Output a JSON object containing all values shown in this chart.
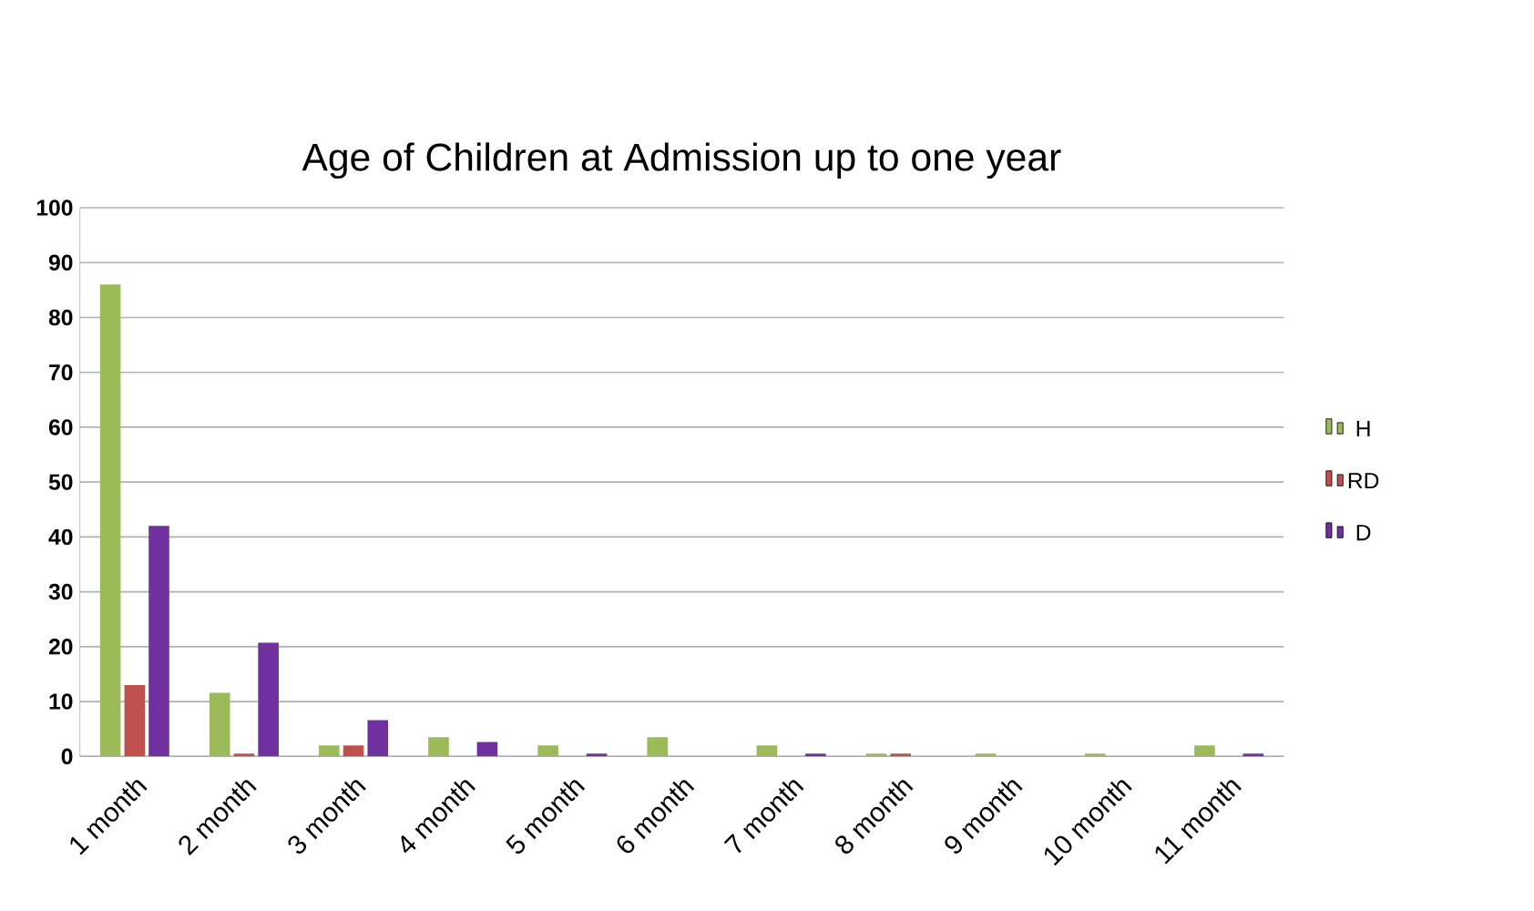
{
  "chart_data": {
    "type": "bar",
    "title": "Age of Children at Admission up to one year",
    "categories": [
      "1 month",
      "2 month",
      "3 month",
      "4 month",
      "5 month",
      "6 month",
      "7 month",
      "8 month",
      "9 month",
      "10 month",
      "11 month"
    ],
    "series": [
      {
        "name": "H",
        "color": "#9bbb59",
        "values": [
          86,
          11.6,
          2,
          3.5,
          2,
          3.5,
          2,
          0.5,
          0.5,
          0.5,
          2
        ]
      },
      {
        "name": "RD",
        "color": "#c0504d",
        "values": [
          13,
          0.5,
          2,
          0,
          0,
          0,
          0,
          0.5,
          0,
          0,
          0
        ]
      },
      {
        "name": "D",
        "color": "#7030a0",
        "values": [
          42,
          20.7,
          6.6,
          2.6,
          0.5,
          0,
          0.5,
          0,
          0,
          0,
          0.5
        ]
      }
    ],
    "ylim": [
      0,
      100
    ],
    "yticks": [
      0,
      10,
      20,
      30,
      40,
      50,
      60,
      70,
      80,
      90,
      100
    ],
    "grid": "y",
    "legend": "right"
  }
}
